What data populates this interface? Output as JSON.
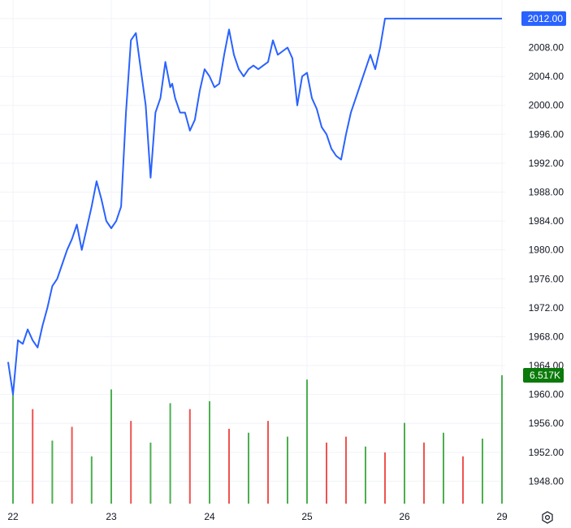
{
  "chart_data": {
    "type": "line",
    "price_series": {
      "color": "#2962ff",
      "x_day": [
        21.95,
        22.0,
        22.05,
        22.1,
        22.15,
        22.2,
        22.25,
        22.3,
        22.35,
        22.4,
        22.45,
        22.5,
        22.55,
        22.6,
        22.65,
        22.7,
        22.75,
        22.8,
        22.85,
        22.9,
        22.95,
        23.0,
        23.05,
        23.1,
        23.15,
        23.2,
        23.25,
        23.3,
        23.35,
        23.4,
        23.45,
        23.5,
        23.55,
        23.6,
        23.62,
        23.65,
        23.7,
        23.75,
        23.8,
        23.85,
        23.9,
        23.95,
        24.0,
        24.05,
        24.1,
        24.15,
        24.2,
        24.25,
        24.3,
        24.35,
        24.4,
        24.45,
        24.5,
        24.55,
        24.6,
        24.65,
        24.7,
        24.75,
        24.8,
        24.85,
        24.9,
        24.95,
        25.0,
        25.05,
        25.1,
        25.15,
        25.2,
        25.25,
        25.3,
        25.35,
        25.4,
        25.45,
        25.5,
        25.55,
        25.6,
        25.65,
        25.7,
        25.75,
        25.8,
        25.85,
        25.9,
        25.95,
        26.0,
        26.05,
        26.1,
        26.15,
        26.2,
        26.25,
        26.3,
        26.35,
        26.4,
        26.45,
        26.5,
        26.55,
        26.6,
        26.65,
        26.7,
        26.75,
        26.8,
        26.85,
        26.9,
        26.95,
        27.0
      ],
      "y": [
        1964.5,
        1960.0,
        1967.5,
        1967.0,
        1969.0,
        1967.5,
        1966.5,
        1969.5,
        1972.0,
        1975.0,
        1976.0,
        1978.0,
        1980.0,
        1981.5,
        1983.5,
        1980.0,
        1983.0,
        1986.0,
        1989.5,
        1987.0,
        1984.0,
        1983.0,
        1984.0,
        1986.0,
        1999.0,
        2009.0,
        2010.0,
        2005.0,
        2000.0,
        1990.0,
        1999.0,
        2001.0,
        2006.0,
        2002.5,
        2003.0,
        2001.0,
        1999.0,
        1999.0,
        1996.5,
        1998.0,
        2002.0,
        2005.0,
        2004.0,
        2002.5,
        2003.0,
        2007.0,
        2010.5,
        2007.0,
        2005.0,
        2004.0,
        2005.0,
        2005.5,
        2005.0,
        2005.5,
        2006.0,
        2009.0,
        2007.0,
        2007.5,
        2008.0,
        2006.5,
        2000.0,
        2004.0,
        2004.5,
        2001.0,
        1999.5,
        1997.0,
        1996.0,
        1994.0,
        1993.0,
        1992.5,
        1996.0,
        1999.0,
        2001.0,
        2003.0,
        2005.0,
        2007.0,
        2005.0,
        2008.0,
        2012.0,
        2012.0,
        2012.0,
        2012.0,
        2012.0,
        2012.0,
        2012.0,
        2012.0,
        2012.0,
        2012.0,
        2012.0,
        2012.0,
        2012.0,
        2012.0,
        2012.0,
        2012.0,
        2012.0,
        2012.0,
        2012.0,
        2012.0,
        2012.0,
        2012.0,
        2012.0,
        2012.0,
        2012.0
      ]
    },
    "x_ticks": [
      "22",
      "23",
      "24",
      "25",
      "26",
      "29"
    ],
    "y_ticks": [
      "2012.00",
      "2008.00",
      "2004.00",
      "2000.00",
      "1996.00",
      "1992.00",
      "1988.00",
      "1984.00",
      "1980.00",
      "1976.00",
      "1972.00",
      "1968.00",
      "1964.00",
      "1960.00",
      "1956.00",
      "1952.00",
      "1948.00"
    ],
    "y_tick_values": [
      2012,
      2008,
      2004,
      2000,
      1996,
      1992,
      1988,
      1984,
      1980,
      1976,
      1972,
      1968,
      1964,
      1960,
      1956,
      1952,
      1948
    ],
    "ylim": [
      1944.9,
      2013.9
    ],
    "last_price_label": "2012.00",
    "last_price_value": 2012.0,
    "last_price_color": "#2962ff",
    "volume_label": "6.517K",
    "volume_label_color": "#0a7a0a",
    "volume_colors": {
      "up": "#4caf50",
      "down": "#ef5350"
    },
    "volume_max_k": 6.517,
    "grid": true,
    "volume": {
      "x_day": [
        22.0,
        22.2,
        22.4,
        22.6,
        22.8,
        23.0,
        23.2,
        23.4,
        23.6,
        23.8,
        24.0,
        24.2,
        24.4,
        24.6,
        24.8,
        25.0,
        25.2,
        25.4,
        25.6,
        25.8,
        26.0,
        26.2,
        26.4,
        26.6,
        26.8,
        27.0
      ],
      "k": [
        5.6,
        4.8,
        3.2,
        3.9,
        2.4,
        5.8,
        4.2,
        3.1,
        5.1,
        4.8,
        5.2,
        3.8,
        3.6,
        4.2,
        3.4,
        6.3,
        3.1,
        3.4,
        2.9,
        2.6,
        4.1,
        3.1,
        3.6,
        2.4,
        3.3,
        6.52
      ],
      "up": [
        true,
        false,
        true,
        false,
        true,
        true,
        false,
        true,
        true,
        false,
        true,
        false,
        true,
        false,
        true,
        true,
        false,
        false,
        true,
        false,
        true,
        false,
        true,
        false,
        true,
        true
      ]
    }
  },
  "ui": {
    "settings_icon": "gear-icon"
  }
}
